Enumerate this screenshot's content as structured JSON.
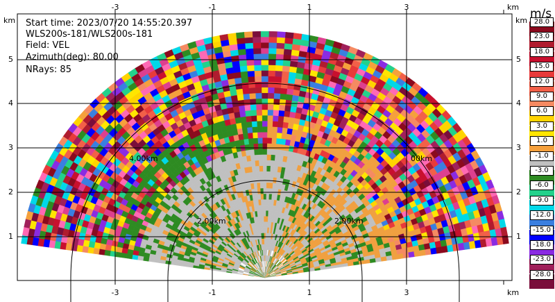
{
  "info": {
    "start_time": "Start time: 2023/07/20 14:55:20.397",
    "instrument": "WLS200s-181/WLS200s-181",
    "field": "Field: VEL",
    "azimuth": "Azimuth(deg): 80.00",
    "nrays": "NRays: 85"
  },
  "axes": {
    "x_ticks": [
      "-3",
      "-1",
      "1",
      "3"
    ],
    "y_ticks": [
      "1",
      "2",
      "3",
      "4",
      "5"
    ],
    "unit": "km"
  },
  "range_rings": {
    "label_2km": "2.00km",
    "label_4km_left": "4.00km",
    "label_4km_right": "00km"
  },
  "colorbar": {
    "unit": "m/s",
    "labels": [
      "28.0",
      "23.0",
      "18.0",
      "15.0",
      "12.0",
      "9.0",
      "6.0",
      "3.0",
      "1.0",
      "-1.0",
      "-3.0",
      "-6.0",
      "-9.0",
      "-12.0",
      "-15.0",
      "-18.0",
      "-23.0",
      "-28.0"
    ],
    "colors": [
      "#8b0a1e",
      "#b01c2e",
      "#c8102e",
      "#e83a3a",
      "#f26048",
      "#f58a62",
      "#ffd400",
      "#ffe600",
      "#f5a03c",
      "#c0c0c0",
      "#2e8b22",
      "#23d18b",
      "#00d8e8",
      "#3a7fe0",
      "#0000ff",
      "#8a2be2",
      "#a0205a",
      "#7a0d3a"
    ]
  }
}
